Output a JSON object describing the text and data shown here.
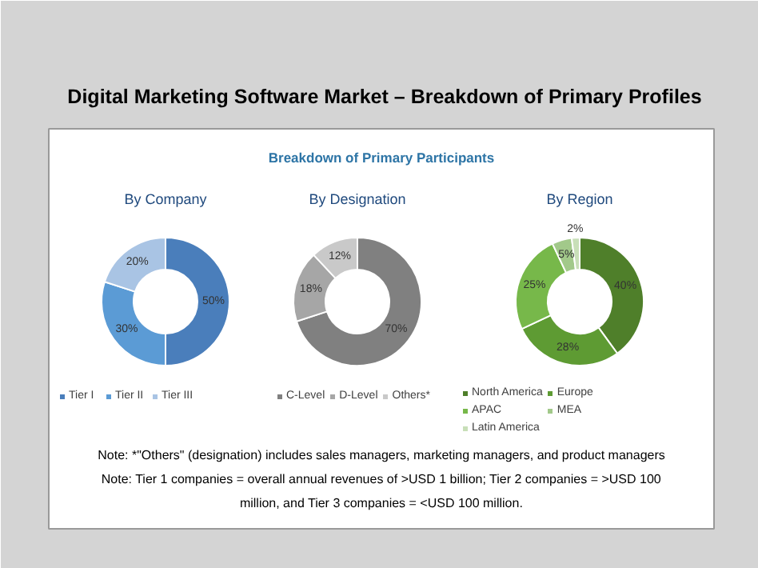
{
  "chart_data": [
    {
      "type": "donut",
      "title": "By Company",
      "annotations": [
        "Digital Marketing Software Market – Breakdown of Primary Profiles",
        "Breakdown of Primary Participants"
      ],
      "categories": [
        "Tier I",
        "Tier II",
        "Tier III"
      ],
      "values": [
        50,
        30,
        20
      ],
      "colors": [
        "#4a7ebb",
        "#5b9bd5",
        "#a9c4e4"
      ],
      "value_labels": [
        "50%",
        "30%",
        "20%"
      ],
      "legend": "bottom"
    },
    {
      "type": "donut",
      "title": "By Designation",
      "categories": [
        "C-Level",
        "D-Level",
        "Others*"
      ],
      "values": [
        70,
        18,
        12
      ],
      "colors": [
        "#808080",
        "#a6a6a6",
        "#c9c9c9"
      ],
      "value_labels": [
        "70%",
        "18%",
        "12%"
      ],
      "legend": "bottom"
    },
    {
      "type": "donut",
      "title": "By Region",
      "categories": [
        "North America",
        "Europe",
        "APAC",
        "MEA",
        "Latin America"
      ],
      "values": [
        40,
        28,
        25,
        5,
        2
      ],
      "colors": [
        "#4f7f2a",
        "#5e9b33",
        "#77b84a",
        "#a2c98a",
        "#c8dfb8"
      ],
      "value_labels": [
        "40%",
        "28%",
        "25%",
        "5%",
        "2%"
      ],
      "legend": "bottom",
      "annotations": [
        "Note: *\"Others\" (designation) includes sales managers, marketing managers, and product managers",
        "Note: Tier 1 companies = overall annual revenues of >USD 1 billion; Tier 2 companies = >USD 100 million, and Tier 3 companies = <USD 100 million."
      ]
    }
  ]
}
